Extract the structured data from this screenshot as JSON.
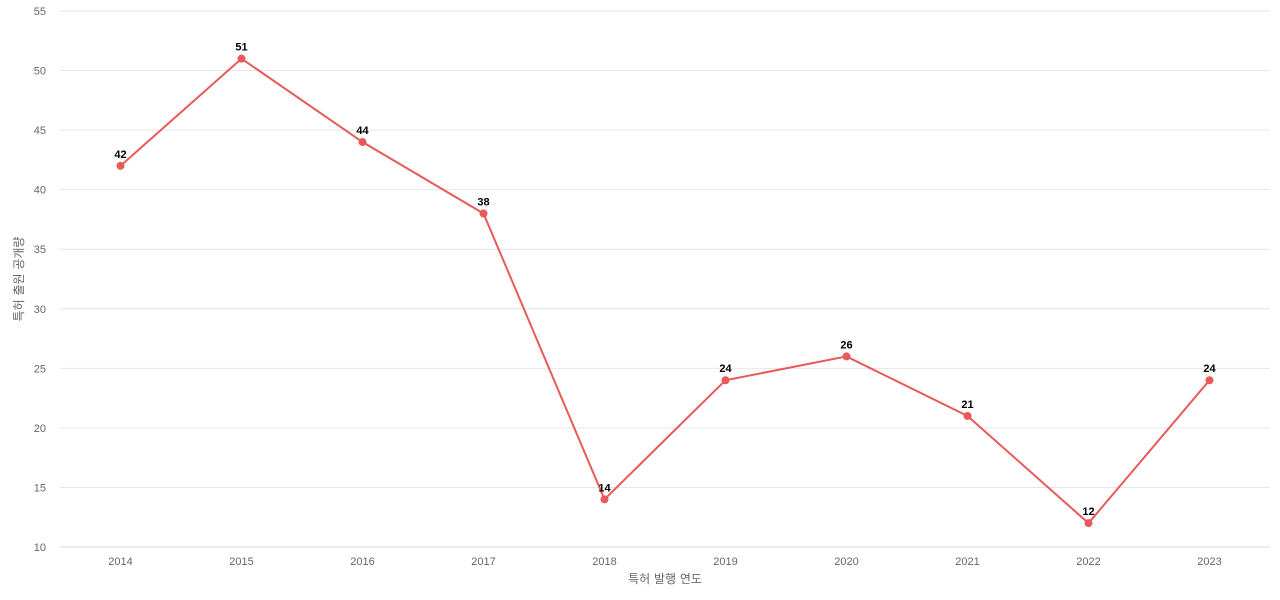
{
  "chart_data": {
    "type": "line",
    "title": "",
    "xlabel": "특허 발행 연도",
    "ylabel": "특허 출원 공개량",
    "categories": [
      "2014",
      "2015",
      "2016",
      "2017",
      "2018",
      "2019",
      "2020",
      "2021",
      "2022",
      "2023"
    ],
    "series": [
      {
        "name": "",
        "values": [
          42,
          51,
          44,
          38,
          14,
          24,
          26,
          21,
          12,
          24
        ],
        "color": "#e85a5a"
      }
    ],
    "ylim": [
      10,
      55
    ],
    "yticks": [
      10,
      15,
      20,
      25,
      30,
      35,
      40,
      45,
      50,
      55
    ],
    "grid": true,
    "data_labels": true,
    "legend": "none"
  }
}
